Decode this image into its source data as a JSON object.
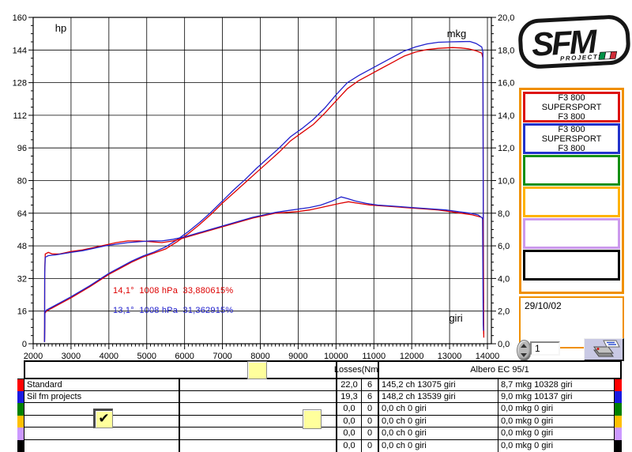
{
  "chart_data": {
    "type": "line",
    "title": "",
    "x_axis": {
      "label": "giri",
      "min": 2000,
      "max": 14000,
      "major_step": 1000,
      "minor_step": 100,
      "tick_labels": [
        "2000",
        "3000",
        "4000",
        "5000",
        "6000",
        "7000",
        "8000",
        "9000",
        "10000",
        "11000",
        "12000",
        "13000",
        "14000"
      ]
    },
    "y_left": {
      "label": "hp",
      "min": 0,
      "max": 160,
      "major_step": 16,
      "minor_step": 4,
      "tick_labels": [
        "0",
        "16",
        "32",
        "48",
        "64",
        "80",
        "96",
        "112",
        "128",
        "144",
        "160"
      ]
    },
    "y_right": {
      "label": "mkg",
      "min": 0,
      "max": 20,
      "major_step": 2,
      "minor_step": 0.5,
      "tick_labels": [
        "0,0",
        "2,0",
        "4,0",
        "6,0",
        "8,0",
        "10,0",
        "12,0",
        "14,0",
        "16,0",
        "18,0",
        "20,0"
      ]
    },
    "grid": true,
    "annotations": {
      "red": "14,1°  1008 hPa  33,880615%",
      "blue": "13,1°  1008 hPa  31,362915%"
    },
    "series": [
      {
        "name": "standard-power-hp",
        "color": "#dd0000",
        "axis": "left",
        "points": [
          [
            2300,
            1
          ],
          [
            2310,
            15
          ],
          [
            2350,
            16
          ],
          [
            2500,
            17.5
          ],
          [
            3000,
            22.5
          ],
          [
            3500,
            28
          ],
          [
            4000,
            34
          ],
          [
            4300,
            37
          ],
          [
            4600,
            40
          ],
          [
            4900,
            42.5
          ],
          [
            5200,
            44.5
          ],
          [
            5500,
            46.5
          ],
          [
            5800,
            50
          ],
          [
            6100,
            54
          ],
          [
            6400,
            58.5
          ],
          [
            6700,
            63.5
          ],
          [
            7000,
            69
          ],
          [
            7300,
            74
          ],
          [
            7600,
            79
          ],
          [
            7900,
            84
          ],
          [
            8200,
            89
          ],
          [
            8500,
            94
          ],
          [
            8800,
            99.5
          ],
          [
            9100,
            103.5
          ],
          [
            9400,
            107.5
          ],
          [
            9700,
            113
          ],
          [
            10000,
            119
          ],
          [
            10300,
            125
          ],
          [
            10600,
            129
          ],
          [
            10900,
            132
          ],
          [
            11200,
            135
          ],
          [
            11500,
            138
          ],
          [
            11800,
            141
          ],
          [
            12100,
            143
          ],
          [
            12400,
            144.2
          ],
          [
            12700,
            144.8
          ],
          [
            13075,
            145.2
          ],
          [
            13300,
            145
          ],
          [
            13500,
            144.6
          ],
          [
            13700,
            143.6
          ],
          [
            13850,
            142.5
          ],
          [
            13880,
            140
          ],
          [
            13900,
            8
          ],
          [
            13905,
            3
          ]
        ]
      },
      {
        "name": "silfm-power-hp",
        "color": "#2020cc",
        "axis": "left",
        "points": [
          [
            2300,
            1
          ],
          [
            2310,
            15.5
          ],
          [
            2350,
            16.5
          ],
          [
            2500,
            18
          ],
          [
            3000,
            23
          ],
          [
            3500,
            28.5
          ],
          [
            4000,
            34.5
          ],
          [
            4300,
            37.5
          ],
          [
            4600,
            40.5
          ],
          [
            4900,
            43
          ],
          [
            5200,
            45
          ],
          [
            5500,
            47.5
          ],
          [
            5800,
            51
          ],
          [
            6100,
            55
          ],
          [
            6400,
            59.5
          ],
          [
            6700,
            64.5
          ],
          [
            7000,
            70
          ],
          [
            7300,
            75.5
          ],
          [
            7600,
            80.5
          ],
          [
            7900,
            86
          ],
          [
            8200,
            91
          ],
          [
            8500,
            96
          ],
          [
            8800,
            101.5
          ],
          [
            9100,
            105.5
          ],
          [
            9400,
            110
          ],
          [
            9700,
            115.5
          ],
          [
            10000,
            122
          ],
          [
            10300,
            128
          ],
          [
            10600,
            131.5
          ],
          [
            10900,
            134.5
          ],
          [
            11200,
            137.5
          ],
          [
            11500,
            140.5
          ],
          [
            11800,
            143.5
          ],
          [
            12100,
            145.5
          ],
          [
            12400,
            147
          ],
          [
            12700,
            147.8
          ],
          [
            13000,
            148
          ],
          [
            13300,
            148.1
          ],
          [
            13539,
            148.2
          ],
          [
            13700,
            147.2
          ],
          [
            13850,
            145.5
          ],
          [
            13880,
            143
          ],
          [
            13890,
            60
          ],
          [
            13895,
            20
          ]
        ]
      },
      {
        "name": "standard-torque-mkg",
        "color": "#dd0000",
        "axis": "right",
        "points": [
          [
            2300,
            0.1
          ],
          [
            2305,
            4.5
          ],
          [
            2320,
            5.5
          ],
          [
            2400,
            5.6
          ],
          [
            2500,
            5.5
          ],
          [
            2700,
            5.5
          ],
          [
            3000,
            5.65
          ],
          [
            3300,
            5.75
          ],
          [
            3600,
            5.9
          ],
          [
            3900,
            6.05
          ],
          [
            4200,
            6.2
          ],
          [
            4500,
            6.3
          ],
          [
            4800,
            6.3
          ],
          [
            5100,
            6.25
          ],
          [
            5400,
            6.2
          ],
          [
            5700,
            6.3
          ],
          [
            6000,
            6.5
          ],
          [
            6300,
            6.7
          ],
          [
            6600,
            6.9
          ],
          [
            6900,
            7.1
          ],
          [
            7200,
            7.3
          ],
          [
            7500,
            7.5
          ],
          [
            7800,
            7.7
          ],
          [
            8100,
            7.85
          ],
          [
            8400,
            8.0
          ],
          [
            8700,
            8.05
          ],
          [
            9000,
            8.1
          ],
          [
            9300,
            8.2
          ],
          [
            9600,
            8.35
          ],
          [
            9900,
            8.5
          ],
          [
            10100,
            8.6
          ],
          [
            10328,
            8.7
          ],
          [
            10600,
            8.6
          ],
          [
            10900,
            8.5
          ],
          [
            11200,
            8.45
          ],
          [
            11500,
            8.4
          ],
          [
            11800,
            8.35
          ],
          [
            12100,
            8.3
          ],
          [
            12400,
            8.25
          ],
          [
            12700,
            8.2
          ],
          [
            13000,
            8.1
          ],
          [
            13300,
            8.0
          ],
          [
            13600,
            7.9
          ],
          [
            13850,
            7.75
          ],
          [
            13880,
            7.6
          ],
          [
            13900,
            1.0
          ],
          [
            13905,
            0.6
          ]
        ]
      },
      {
        "name": "silfm-torque-mkg",
        "color": "#2020cc",
        "axis": "right",
        "points": [
          [
            2300,
            0.1
          ],
          [
            2305,
            4.3
          ],
          [
            2320,
            5.3
          ],
          [
            2400,
            5.4
          ],
          [
            2600,
            5.45
          ],
          [
            3000,
            5.6
          ],
          [
            3300,
            5.7
          ],
          [
            3600,
            5.85
          ],
          [
            3900,
            6.0
          ],
          [
            4200,
            6.1
          ],
          [
            4500,
            6.2
          ],
          [
            4800,
            6.25
          ],
          [
            5100,
            6.3
          ],
          [
            5400,
            6.3
          ],
          [
            5700,
            6.4
          ],
          [
            6000,
            6.55
          ],
          [
            6300,
            6.75
          ],
          [
            6600,
            6.95
          ],
          [
            6900,
            7.15
          ],
          [
            7200,
            7.35
          ],
          [
            7500,
            7.55
          ],
          [
            7800,
            7.75
          ],
          [
            8100,
            7.9
          ],
          [
            8400,
            8.05
          ],
          [
            8700,
            8.15
          ],
          [
            9000,
            8.25
          ],
          [
            9300,
            8.35
          ],
          [
            9600,
            8.5
          ],
          [
            9900,
            8.75
          ],
          [
            10137,
            9.0
          ],
          [
            10300,
            8.9
          ],
          [
            10500,
            8.75
          ],
          [
            10800,
            8.6
          ],
          [
            11100,
            8.5
          ],
          [
            11400,
            8.45
          ],
          [
            11700,
            8.4
          ],
          [
            12000,
            8.35
          ],
          [
            12300,
            8.3
          ],
          [
            12600,
            8.25
          ],
          [
            12900,
            8.2
          ],
          [
            13200,
            8.1
          ],
          [
            13539,
            8.0
          ],
          [
            13750,
            7.9
          ],
          [
            13870,
            7.7
          ],
          [
            13890,
            1.2
          ],
          [
            13895,
            0.8
          ]
        ]
      }
    ]
  },
  "logo": {
    "text": "SFM",
    "subtext": "PROJECTS",
    "flag_colors": [
      "#009246",
      "#ffffff",
      "#ce2b37"
    ]
  },
  "legend": {
    "frame_color": "#f09000",
    "slots": [
      {
        "color": "#dd1111",
        "lines": [
          "F3 800",
          "SUPERSPORT",
          "F3 800"
        ]
      },
      {
        "color": "#2233cc",
        "lines": [
          "F3 800",
          "SUPERSPORT",
          "F3 800"
        ]
      },
      {
        "color": "#149014",
        "lines": []
      },
      {
        "color": "#ffb300",
        "lines": []
      },
      {
        "color": "#cc99ee",
        "lines": []
      },
      {
        "color": "#000000",
        "lines": []
      }
    ]
  },
  "sidebar": {
    "date": "29/10/02",
    "spinner_value": "1"
  },
  "table": {
    "header": {
      "losses": "Losses(Nm)",
      "albero": "Albero EC 95/1"
    },
    "rows": [
      {
        "color": "#ff0000",
        "name": "Standard",
        "v1": "22,0",
        "v2": "6",
        "power": "145,2 ch 13075 giri",
        "torque": "8,7 mkg 10328 giri"
      },
      {
        "color": "#1a1ae0",
        "name": "Sil fm projects",
        "v1": "19,3",
        "v2": "6",
        "power": "148,2 ch 13539 giri",
        "torque": "9,0 mkg 10137 giri"
      },
      {
        "color": "#008000",
        "name": "",
        "v1": "0,0",
        "v2": "0",
        "power": "0,0 ch 0 giri",
        "torque": "0,0 mkg 0 giri"
      },
      {
        "color": "#ffc000",
        "name": "",
        "v1": "0,0",
        "v2": "0",
        "power": "0,0 ch 0 giri",
        "torque": "0,0 mkg 0 giri"
      },
      {
        "color": "#cc99ff",
        "name": "",
        "v1": "0,0",
        "v2": "0",
        "power": "0,0 ch 0 giri",
        "torque": "0,0 mkg 0 giri"
      },
      {
        "color": "#000000",
        "name": "",
        "v1": "0,0",
        "v2": "0",
        "power": "0,0 ch 0 giri",
        "torque": "0,0 mkg 0 giri"
      }
    ]
  },
  "markers": {
    "check_glyph": "✔"
  }
}
